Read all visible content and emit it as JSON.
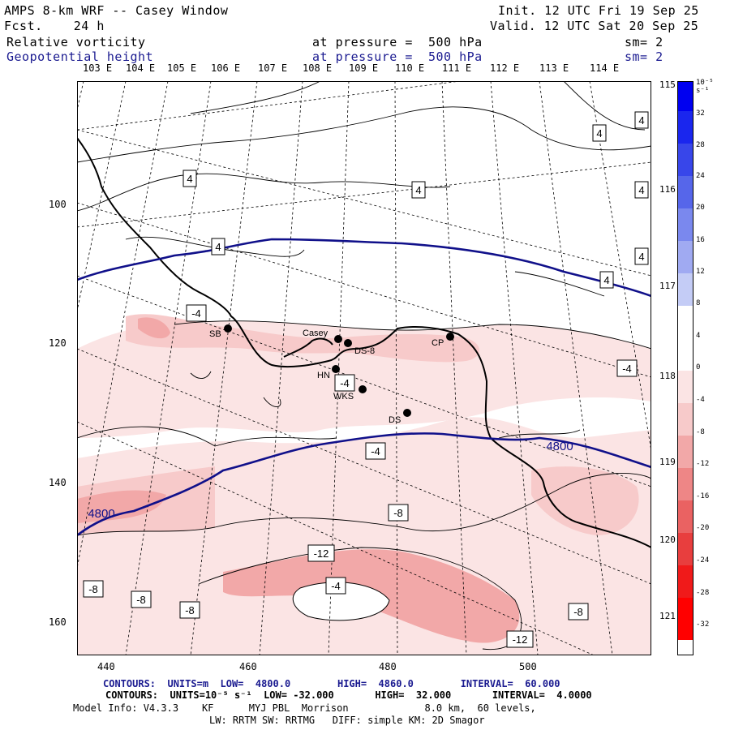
{
  "header": {
    "title": "AMPS 8-km WRF -- Casey Window",
    "fcst": "Fcst.    24 h",
    "init": "Init. 12 UTC Fri 19 Sep 25",
    "valid": "Valid. 12 UTC Sat 20 Sep 25",
    "field1": "Relative vorticity",
    "field2": "Geopotential height",
    "press1": "at pressure =  500 hPa",
    "press2": "at pressure =  500 hPa",
    "sm1": "sm= 2",
    "sm2": "sm= 2"
  },
  "lon_top": [
    "103 E",
    "104 E",
    "105 E",
    "106 E",
    "107 E",
    "108 E",
    "109 E",
    "110 E",
    "111 E",
    "112 E",
    "113 E",
    "114 E"
  ],
  "lon_right": [
    "115 E",
    "116 E",
    "117 E",
    "118 E",
    "119 E",
    "120 E",
    "121 E"
  ],
  "y_ticks": [
    "100",
    "120",
    "140",
    "160"
  ],
  "x_ticks": [
    "440",
    "460",
    "480",
    "500"
  ],
  "stations": [
    "SB",
    "Casey",
    "DS-8",
    "CP",
    "HN",
    "WKS",
    "DS"
  ],
  "contour_labels": {
    "vort": [
      "4",
      "4",
      "4",
      "4",
      "4",
      "4",
      "4",
      "4",
      "-4",
      "-4",
      "-4",
      "-4",
      "-8",
      "-8",
      "-8",
      "-8",
      "-8",
      "-12",
      "-12",
      "-4"
    ],
    "height": [
      "4800",
      "4800"
    ]
  },
  "colorbar": {
    "unit": "10⁻⁵ s⁻¹",
    "labels": [
      "32",
      "28",
      "24",
      "20",
      "16",
      "12",
      "8",
      "4",
      "0",
      "-4",
      "-8",
      "-12",
      "-16",
      "-20",
      "-24",
      "-28",
      "-32"
    ],
    "colors": [
      "#0a0af0",
      "#2a36ea",
      "#4656e6",
      "#6676ea",
      "#8896ee",
      "#aab4f2",
      "#cad2f6",
      "#ffffff",
      "#ffffff",
      "#fbe4e4",
      "#f7caca",
      "#f2a8a8",
      "#ee8686",
      "#ea6262",
      "#e83e3e",
      "#f01a1a",
      "#ff0000"
    ]
  },
  "footer": {
    "line1": "CONTOURS:  UNITS=m  LOW=  4800.0        HIGH=  4860.0        INTERVAL=  60.000",
    "line2": "CONTOURS:  UNITS=10⁻⁵ s⁻¹  LOW= -32.000       HIGH=  32.000       INTERVAL=  4.0000",
    "line3": "Model Info: V4.3.3    KF      MYJ PBL  Morrison             8.0 km,  60 levels,",
    "line4": "LW: RRTM SW: RRTMG   DIFF: simple KM: 2D Smagor"
  }
}
